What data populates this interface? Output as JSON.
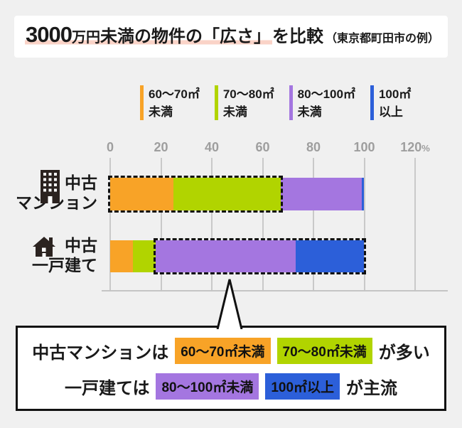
{
  "title": {
    "amount": "3000",
    "amount_unit": "万円",
    "highlight_rest": "未満の物件の「広さ」",
    "after": "を比較",
    "note": "（東京都町田市の例）"
  },
  "colors": {
    "orange": "#F8A327",
    "green": "#B1D400",
    "purple": "#A476E0",
    "blue": "#2C5FD9",
    "title_marker_pink": "#FAD3C7",
    "page_bg": "#F0F0F0",
    "gridline": "#C9C9C9",
    "axis_text": "#9E9E9E",
    "text": "#1A1A1A"
  },
  "legend": {
    "items": [
      {
        "line1": "60〜70㎡",
        "line2": "未満",
        "color": "#F8A327"
      },
      {
        "line1": "70〜80㎡",
        "line2": "未満",
        "color": "#B1D400"
      },
      {
        "line1": "80〜100㎡",
        "line2": "未満",
        "color": "#A476E0"
      },
      {
        "line1": "100㎡",
        "line2": "以上",
        "color": "#2C5FD9"
      }
    ]
  },
  "rows": [
    {
      "icon": "building-icon",
      "label_line1": "中古",
      "label_line2": "マンション"
    },
    {
      "icon": "house-icon",
      "label_line1": "中古",
      "label_line2": "一戸建て"
    }
  ],
  "chart_data": {
    "type": "bar",
    "orientation": "horizontal",
    "stacked": true,
    "unit": "%",
    "title": "3000万円未満の物件の「広さ」を比較（東京都町田市の例）",
    "categories": [
      "中古マンション",
      "中古一戸建て"
    ],
    "series": [
      {
        "name": "60〜70㎡未満",
        "color": "#F8A327",
        "values": [
          25,
          9
        ]
      },
      {
        "name": "70〜80㎡未満",
        "color": "#B1D400",
        "values": [
          42,
          9
        ]
      },
      {
        "name": "80〜100㎡未満",
        "color": "#A476E0",
        "values": [
          32,
          55
        ]
      },
      {
        "name": "100㎡以上",
        "color": "#2C5FD9",
        "values": [
          1,
          27
        ]
      }
    ],
    "x_ticks": [
      0,
      20,
      40,
      60,
      80,
      100,
      120
    ],
    "x_tick_unit": "%",
    "xlim": [
      0,
      133
    ],
    "grid": true,
    "legend_position": "top",
    "highlights": [
      {
        "category": "中古マンション",
        "start_pct": 0,
        "end_pct": 67
      },
      {
        "category": "中古一戸建て",
        "start_pct": 18,
        "end_pct": 100
      }
    ]
  },
  "callout": {
    "lines": [
      {
        "prefix": "中古マンションは",
        "chips": [
          {
            "text": "60〜70㎡未満",
            "color": "#F8A327"
          },
          {
            "text": "70〜80㎡未満",
            "color": "#B1D400"
          }
        ],
        "suffix": "が多い"
      },
      {
        "prefix": "一戸建ては",
        "chips": [
          {
            "text": "80〜100㎡未満",
            "color": "#A476E0"
          },
          {
            "text": "100㎡以上",
            "color": "#2C5FD9"
          }
        ],
        "suffix": "が主流"
      }
    ]
  }
}
